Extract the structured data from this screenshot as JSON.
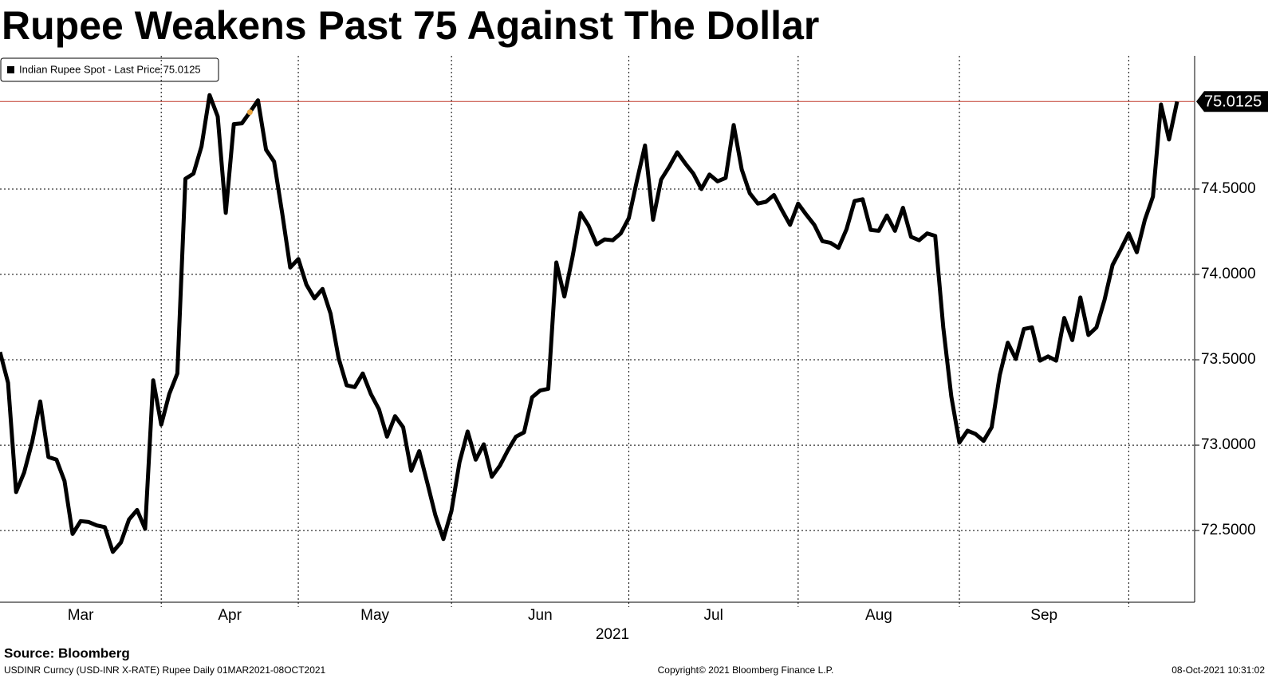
{
  "chart_data": {
    "type": "line",
    "title": "Rupee Weakens Past 75 Against The Dollar",
    "legend_text": "Indian Rupee Spot - Last Price 75.0125",
    "months": [
      "Mar",
      "Apr",
      "May",
      "Jun",
      "Jul",
      "Aug",
      "Sep"
    ],
    "x_label": "2021",
    "source": "Source: Bloomberg",
    "footer_left": "USDINR Curncy (USD-INR X-RATE) Rupee  Daily 01MAR2021-08OCT2021",
    "footer_center": "Copyright© 2021 Bloomberg Finance L.P.",
    "footer_right": "08-Oct-2021 10:31:02",
    "ylim": [
      72.08,
      75.28
    ],
    "yticks": [
      {
        "value": 72.5,
        "label": "72.5000"
      },
      {
        "value": 73,
        "label": "73.0000"
      },
      {
        "value": 73.5,
        "label": "73.5000"
      },
      {
        "value": 74,
        "label": "74.0000"
      },
      {
        "value": 74.5,
        "label": "74.5000"
      }
    ],
    "grid": true,
    "series": [
      {
        "name": "Indian Rupee Spot",
        "color": "#000000",
        "values": [
          73.545,
          73.365,
          72.725,
          72.84,
          73.02,
          73.256,
          72.93,
          72.915,
          72.79,
          72.48,
          72.555,
          72.55,
          72.53,
          72.52,
          72.375,
          72.43,
          72.565,
          72.62,
          72.51,
          73.38,
          73.12,
          73.3,
          73.42,
          74.56,
          74.59,
          74.75,
          75.05,
          74.925,
          74.36,
          74.88,
          74.885,
          74.95,
          75.02,
          74.73,
          74.66,
          74.36,
          74.04,
          74.09,
          73.94,
          73.86,
          73.915,
          73.77,
          73.51,
          73.35,
          73.34,
          73.42,
          73.3,
          73.21,
          73.05,
          73.17,
          73.105,
          72.85,
          72.965,
          72.78,
          72.59,
          72.45,
          72.615,
          72.9,
          73.08,
          72.915,
          73.005,
          72.815,
          72.88,
          72.97,
          73.05,
          73.075,
          73.28,
          73.32,
          73.33,
          74.07,
          73.87,
          74.1,
          74.36,
          74.285,
          74.175,
          74.205,
          74.2,
          74.24,
          74.33,
          74.55,
          74.755,
          74.32,
          74.555,
          74.63,
          74.715,
          74.65,
          74.59,
          74.5,
          74.585,
          74.545,
          74.565,
          74.875,
          74.615,
          74.475,
          74.415,
          74.425,
          74.465,
          74.375,
          74.29,
          74.415,
          74.35,
          74.29,
          74.195,
          74.185,
          74.155,
          74.265,
          74.43,
          74.44,
          74.26,
          74.255,
          74.345,
          74.255,
          74.39,
          74.22,
          74.2,
          74.24,
          74.225,
          73.69,
          73.285,
          73.015,
          73.085,
          73.065,
          73.025,
          73.105,
          73.41,
          73.6,
          73.505,
          73.68,
          73.69,
          73.495,
          73.52,
          73.495,
          73.745,
          73.615,
          73.865,
          73.645,
          73.69,
          73.85,
          74.055,
          74.145,
          74.24,
          74.13,
          74.32,
          74.455,
          74.995,
          74.79,
          75.0125
        ]
      }
    ],
    "last_line_color": "#c0392b",
    "highlight_color": "#e8a33d"
  }
}
